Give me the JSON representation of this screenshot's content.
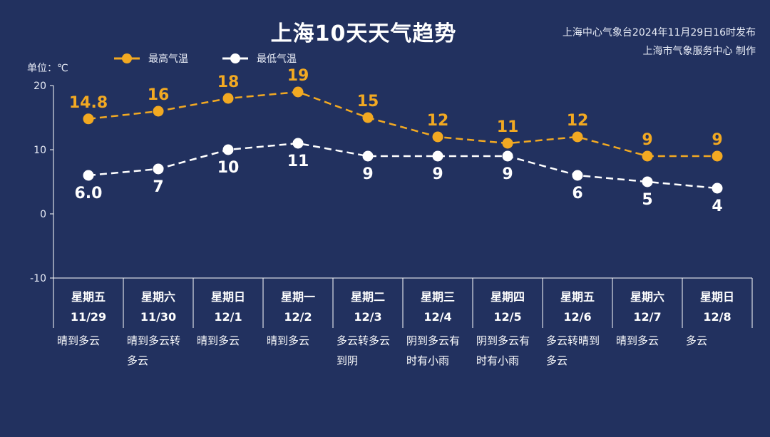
{
  "title": "上海10天天气趋势",
  "source_line1": "上海中心气象台2024年11月29日16时发布",
  "source_line2": "上海市气象服务中心 制作",
  "unit_label": "单位：℃",
  "colors": {
    "background": "#22315f",
    "high": "#f2a922",
    "low": "#ffffff"
  },
  "chart_data": {
    "type": "line",
    "title": "上海10天天气趋势",
    "ylabel": "单位：℃",
    "ylim": [
      -10,
      20
    ],
    "yticks": [
      20,
      10,
      0,
      -10
    ],
    "legend_position": "top-left",
    "grid": false,
    "days": [
      {
        "weekday": "星期五",
        "date": "11/29",
        "weather": [
          "晴到多云"
        ]
      },
      {
        "weekday": "星期六",
        "date": "11/30",
        "weather": [
          "晴到多云转",
          "多云"
        ]
      },
      {
        "weekday": "星期日",
        "date": "12/1",
        "weather": [
          "晴到多云"
        ]
      },
      {
        "weekday": "星期一",
        "date": "12/2",
        "weather": [
          "晴到多云"
        ]
      },
      {
        "weekday": "星期二",
        "date": "12/3",
        "weather": [
          "多云转多云",
          "到阴"
        ]
      },
      {
        "weekday": "星期三",
        "date": "12/4",
        "weather": [
          "阴到多云有",
          "时有小雨"
        ]
      },
      {
        "weekday": "星期四",
        "date": "12/5",
        "weather": [
          "阴到多云有",
          "时有小雨"
        ]
      },
      {
        "weekday": "星期五",
        "date": "12/6",
        "weather": [
          "多云转晴到",
          "多云"
        ]
      },
      {
        "weekday": "星期六",
        "date": "12/7",
        "weather": [
          "晴到多云"
        ]
      },
      {
        "weekday": "星期日",
        "date": "12/8",
        "weather": [
          "多云"
        ]
      }
    ],
    "series": [
      {
        "name": "最高气温",
        "color": "#f2a922",
        "values": [
          14.8,
          16,
          18,
          19,
          15,
          12,
          11,
          12,
          9,
          9
        ],
        "labels": [
          "14.8",
          "16",
          "18",
          "19",
          "15",
          "12",
          "11",
          "12",
          "9",
          "9"
        ]
      },
      {
        "name": "最低气温",
        "color": "#ffffff",
        "values": [
          6.0,
          7,
          10,
          11,
          9,
          9,
          9,
          6,
          5,
          4
        ],
        "labels": [
          "6.0",
          "7",
          "10",
          "11",
          "9",
          "9",
          "9",
          "6",
          "5",
          "4"
        ]
      }
    ]
  }
}
